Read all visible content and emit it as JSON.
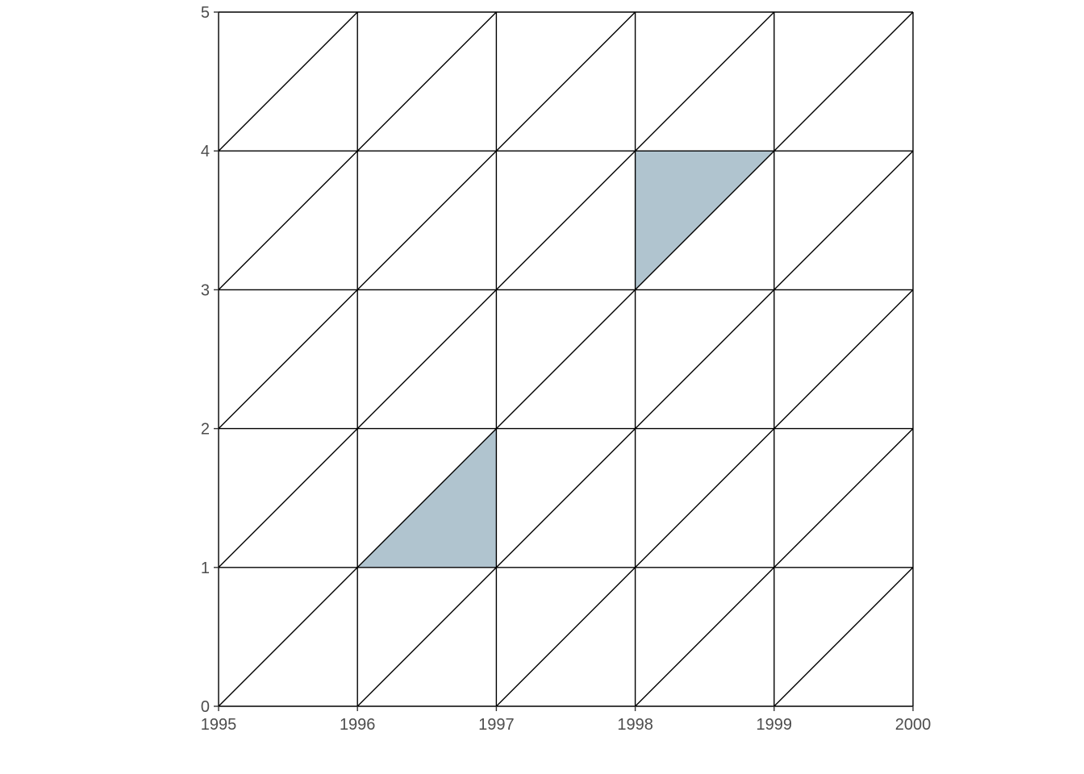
{
  "chart_data": {
    "type": "mesh",
    "title": "",
    "xlabel": "",
    "ylabel": "",
    "xlim": [
      1995,
      2000
    ],
    "ylim": [
      0,
      5
    ],
    "x_ticks": [
      "1995",
      "1996",
      "1997",
      "1998",
      "1999",
      "2000"
    ],
    "y_ticks": [
      "0",
      "1",
      "2",
      "3",
      "4",
      "5"
    ],
    "grid": {
      "x_breaks": [
        1995,
        1996,
        1997,
        1998,
        1999,
        2000
      ],
      "y_breaks": [
        0,
        1,
        2,
        3,
        4,
        5
      ],
      "diagonals": "lower-left to upper-right in every cell"
    },
    "highlighted_triangles": [
      {
        "vertices": [
          [
            1996,
            1
          ],
          [
            1997,
            1
          ],
          [
            1997,
            2
          ]
        ]
      },
      {
        "vertices": [
          [
            1998,
            3
          ],
          [
            1998,
            4
          ],
          [
            1999,
            4
          ]
        ]
      }
    ],
    "colors": {
      "line": "#000000",
      "fill": "#b0c4cf",
      "tick_text": "#4d4d4d"
    }
  }
}
